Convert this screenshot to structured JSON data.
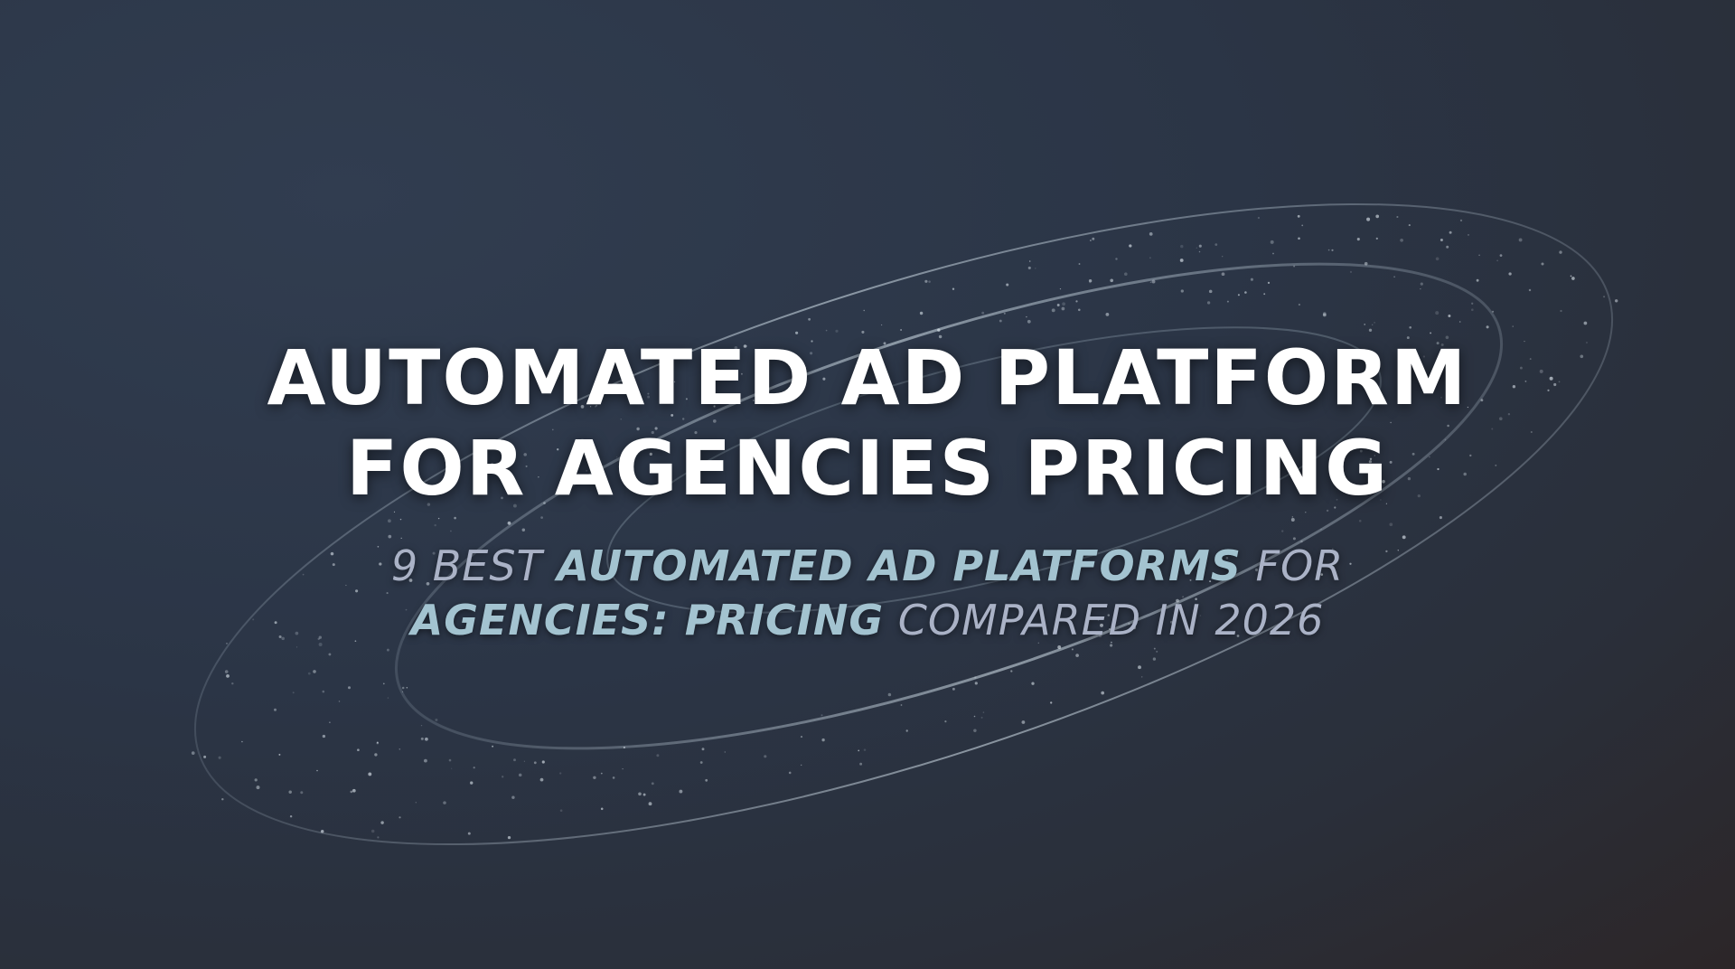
{
  "header": {
    "title_lines": [
      "AUTOMATED AD PLATFORM",
      "FOR AGENCIES PRICING"
    ]
  },
  "subtitle": {
    "lines": [
      [
        {
          "text": "9 BEST",
          "style": "light"
        },
        {
          "text": "AUTOMATED AD PLATFORMS",
          "style": "bold"
        },
        {
          "text": "FOR",
          "style": "light"
        }
      ],
      [
        {
          "text": "AGENCIES: PRICING",
          "style": "bold"
        },
        {
          "text": "COMPARED IN 2026",
          "style": "light"
        }
      ]
    ]
  }
}
